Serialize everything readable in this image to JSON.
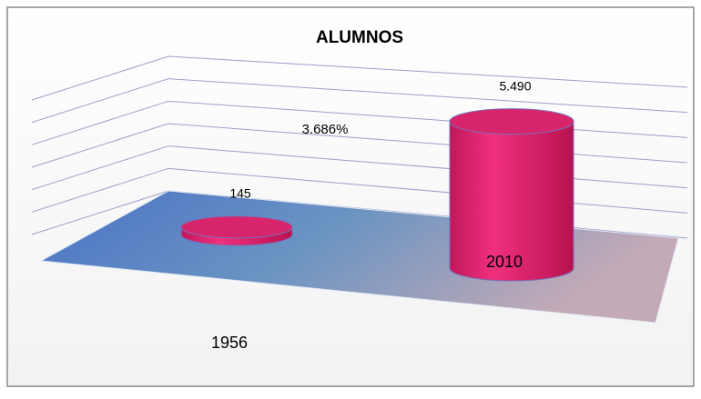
{
  "chart_data": {
    "type": "cylinder",
    "title": "ALUMNOS",
    "categories": [
      "1956",
      "2010"
    ],
    "values": [
      145,
      5490
    ],
    "value_labels": [
      "145",
      "5.490"
    ],
    "color": "#e8246e",
    "annotation": "3.686%",
    "ylim": [
      0,
      6000
    ],
    "yticks": [
      0,
      1000,
      2000,
      3000,
      4000,
      5000,
      6000
    ],
    "grid": true
  }
}
